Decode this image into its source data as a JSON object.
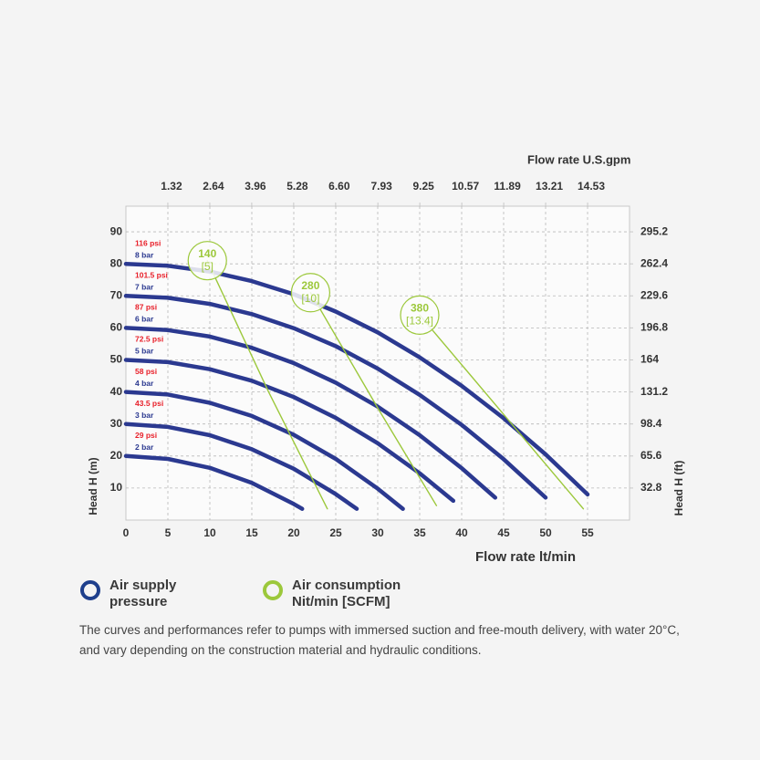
{
  "chart_data": {
    "type": "line",
    "x_label": "Flow rate lt/min",
    "x2_label": "Flow rate U.S.gpm",
    "y_label": "Head H (m)",
    "y2_label": "Head H (ft)",
    "xlim": [
      0,
      60
    ],
    "xticks": [
      0,
      5,
      10,
      15,
      20,
      25,
      30,
      35,
      40,
      45,
      50,
      55
    ],
    "x2lim": [
      0,
      15.85
    ],
    "x2ticks": [
      1.32,
      2.64,
      3.96,
      5.28,
      {
        "value": 6.6,
        "label": "6.60"
      },
      7.93,
      9.25,
      10.57,
      11.89,
      13.21,
      14.53
    ],
    "ylim": [
      0,
      98
    ],
    "yticks": [
      10,
      20,
      30,
      40,
      50,
      60,
      70,
      80,
      90
    ],
    "y2lim": [
      0,
      321.44
    ],
    "y2ticks": [
      32.8,
      65.6,
      98.4,
      131.2,
      164,
      196.8,
      229.6,
      262.4,
      295.2
    ],
    "grid": true,
    "series": [
      {
        "name": "8 bar",
        "psi_label": "116 psi",
        "color": "#2b3990",
        "x": [
          0,
          5,
          10,
          15,
          20,
          25,
          30,
          35,
          40,
          45,
          50,
          55
        ],
        "values": [
          80,
          79.4,
          77.6,
          74.6,
          70.5,
          65.1,
          58.6,
          50.8,
          41.9,
          31.8,
          20.5,
          8
        ]
      },
      {
        "name": "7 bar",
        "psi_label": "101.5 psi",
        "color": "#2b3990",
        "x": [
          0,
          5,
          10,
          15,
          20,
          25,
          30,
          35,
          40,
          45,
          50
        ],
        "values": [
          70,
          69.4,
          67.5,
          64.3,
          59.9,
          54.3,
          47.3,
          39.1,
          29.7,
          19,
          7
        ]
      },
      {
        "name": "6 bar",
        "psi_label": "87 psi",
        "color": "#2b3990",
        "x": [
          0,
          5,
          10,
          15,
          20,
          25,
          30,
          35,
          40,
          44
        ],
        "values": [
          60,
          59.3,
          57.3,
          53.8,
          49,
          42.9,
          35.4,
          26.5,
          16.2,
          7
        ]
      },
      {
        "name": "5 bar",
        "psi_label": "72.5 psi",
        "color": "#2b3990",
        "x": [
          0,
          5,
          10,
          15,
          20,
          25,
          30,
          35,
          39
        ],
        "values": [
          50,
          49.3,
          47.1,
          43.5,
          38.4,
          31.9,
          24,
          14.6,
          6
        ]
      },
      {
        "name": "4 bar",
        "psi_label": "58 psi",
        "color": "#2b3990",
        "x": [
          0,
          5,
          10,
          15,
          20,
          25,
          30,
          33
        ],
        "values": [
          40,
          39.2,
          36.6,
          32.5,
          26.6,
          19.1,
          9.8,
          3.5
        ]
      },
      {
        "name": "3 bar",
        "psi_label": "43.5 psi",
        "color": "#2b3990",
        "x": [
          0,
          5,
          10,
          15,
          20,
          25,
          27.5
        ],
        "values": [
          30,
          29.1,
          26.5,
          22.1,
          16,
          8.1,
          3.5
        ]
      },
      {
        "name": "2 bar",
        "psi_label": "29 psi",
        "color": "#2b3990",
        "x": [
          0,
          5,
          10,
          15,
          20,
          21
        ],
        "values": [
          20,
          19.1,
          16.3,
          11.6,
          5,
          3.5
        ]
      },
      {
        "name": "140",
        "sublabel": "[5]",
        "color": "#9cc83b",
        "x": [
          9.7,
          17,
          24
        ],
        "values": [
          81,
          40,
          3.5
        ]
      },
      {
        "name": "280",
        "sublabel": "[10]",
        "color": "#9cc83b",
        "x": [
          22,
          30,
          37
        ],
        "values": [
          71,
          35,
          4.5
        ]
      },
      {
        "name": "380",
        "sublabel": "[13.4]",
        "color": "#9cc83b",
        "x": [
          35,
          45,
          54.5
        ],
        "values": [
          64,
          33,
          3.5
        ]
      }
    ],
    "legend": [
      {
        "name": "Air supply pressure",
        "color": "#1e3f8c"
      },
      {
        "name": "Air consumption Nit/min [SCFM]",
        "color": "#9cc83b"
      }
    ]
  },
  "note": "The curves and performances refer to pumps with immersed suction and free-mouth delivery, with water 20°C, and vary depending on the construction material and hydraulic conditions."
}
